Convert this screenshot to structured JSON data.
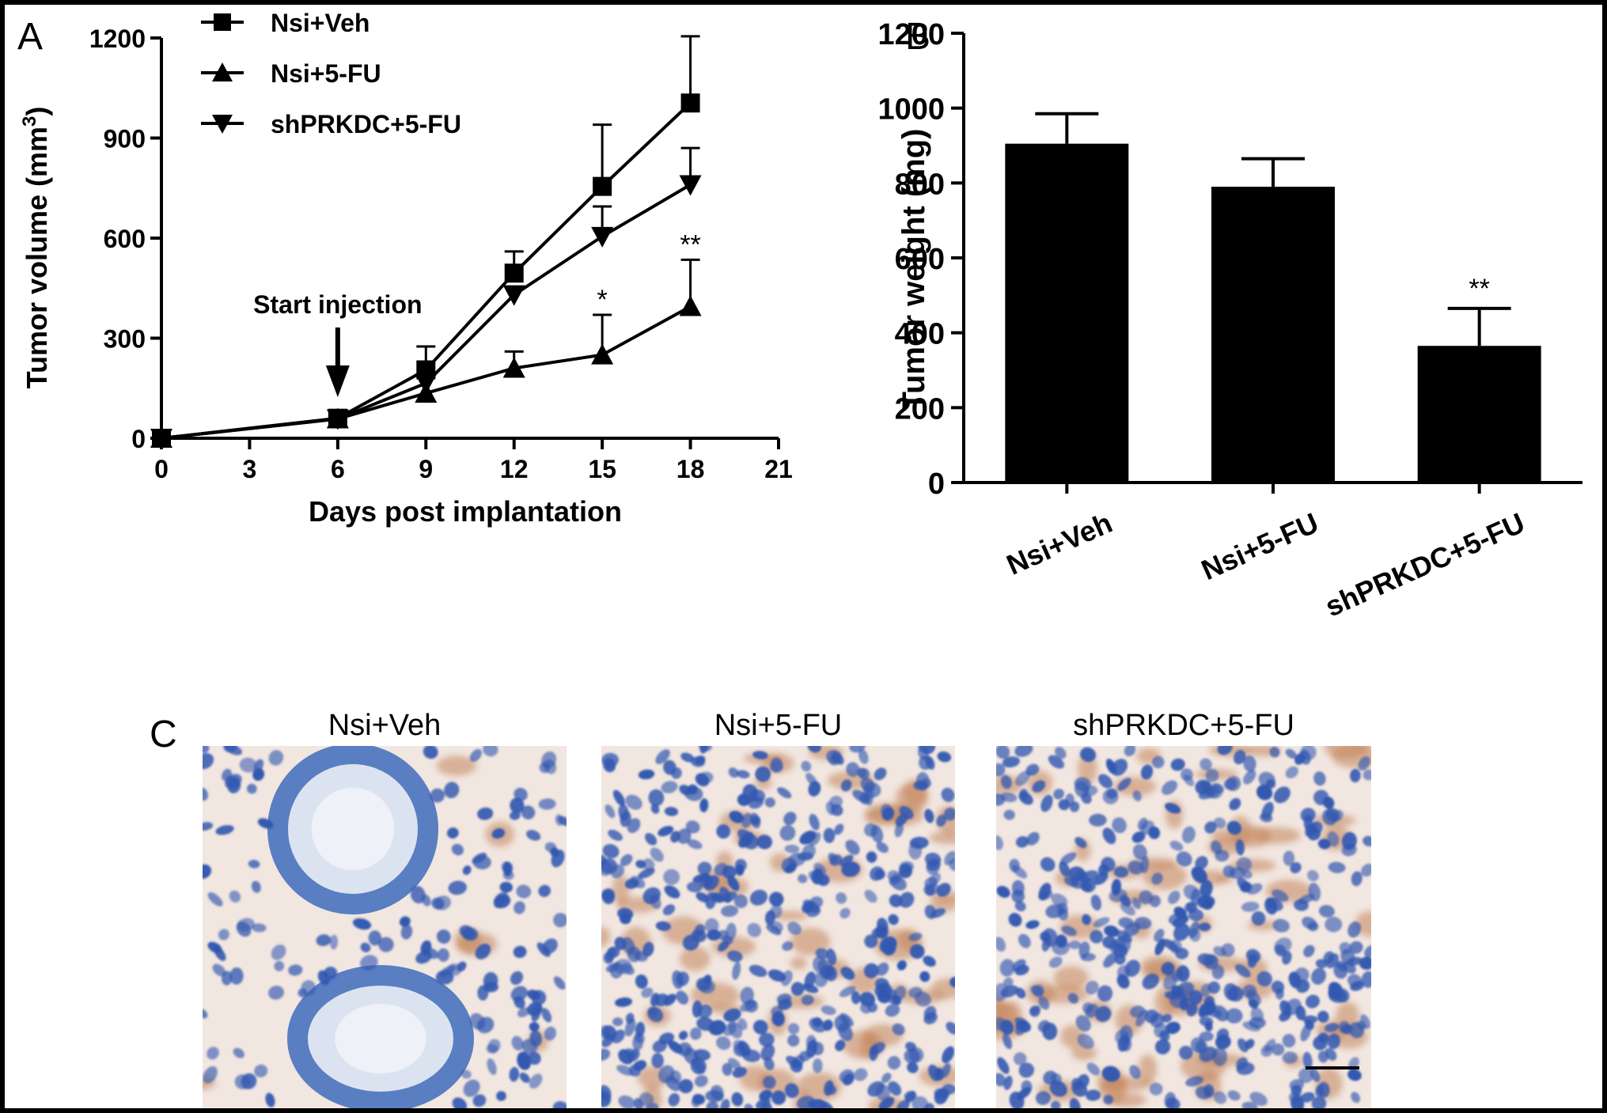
{
  "panels": {
    "a": "A",
    "b": "B",
    "c": "C"
  },
  "chart_data": [
    {
      "type": "line",
      "panel": "A",
      "xlabel": "Days post implantation",
      "ylabel_main": "Tumor volume (mm",
      "ylabel_sup": "3",
      "ylabel_close": ")",
      "xlim": [
        0,
        21
      ],
      "ylim": [
        0,
        1200
      ],
      "xticks": [
        0,
        3,
        6,
        9,
        12,
        15,
        18,
        21
      ],
      "yticks": [
        0,
        300,
        600,
        900,
        1200
      ],
      "annotation_text": "Start injection",
      "annotation_day": 6,
      "legend_position": "top-left",
      "series": [
        {
          "name": "Nsi+Veh",
          "marker": "square",
          "x": [
            0,
            6,
            9,
            12,
            15,
            18
          ],
          "y": [
            0,
            60,
            205,
            495,
            755,
            1005
          ],
          "err": [
            0,
            0,
            70,
            65,
            185,
            200
          ]
        },
        {
          "name": "Nsi+5-FU",
          "marker": "triangle-up",
          "x": [
            0,
            6,
            9,
            12,
            15,
            18
          ],
          "y": [
            0,
            58,
            135,
            210,
            250,
            395
          ],
          "err": [
            0,
            0,
            0,
            50,
            120,
            140
          ]
        },
        {
          "name": "shPRKDC+5-FU",
          "marker": "triangle-down",
          "x": [
            0,
            6,
            9,
            12,
            15,
            18
          ],
          "y": [
            0,
            58,
            165,
            430,
            605,
            760
          ],
          "err": [
            0,
            0,
            0,
            0,
            90,
            110
          ]
        }
      ],
      "significance": [
        {
          "x": 15,
          "text": "*"
        },
        {
          "x": 18,
          "text": "**"
        }
      ]
    },
    {
      "type": "bar",
      "panel": "B",
      "ylabel": "Tumor weight (mg)",
      "ylim": [
        0,
        1200
      ],
      "yticks": [
        0,
        200,
        400,
        600,
        800,
        1000,
        1200
      ],
      "categories": [
        "Nsi+Veh",
        "Nsi+5-FU",
        "shPRKDC+5-FU"
      ],
      "values": [
        905,
        790,
        365
      ],
      "err": [
        80,
        75,
        100
      ],
      "significance": [
        {
          "index": 2,
          "text": "**"
        }
      ]
    }
  ],
  "micrographs": {
    "titles": [
      "Nsi+Veh",
      "Nsi+5-FU",
      "shPRKDC+5-FU"
    ],
    "colors": {
      "background": "#f1e6e0",
      "nucleus": "#3358b0",
      "stain": "#b5652e",
      "gland": "#3f6bbb"
    }
  }
}
